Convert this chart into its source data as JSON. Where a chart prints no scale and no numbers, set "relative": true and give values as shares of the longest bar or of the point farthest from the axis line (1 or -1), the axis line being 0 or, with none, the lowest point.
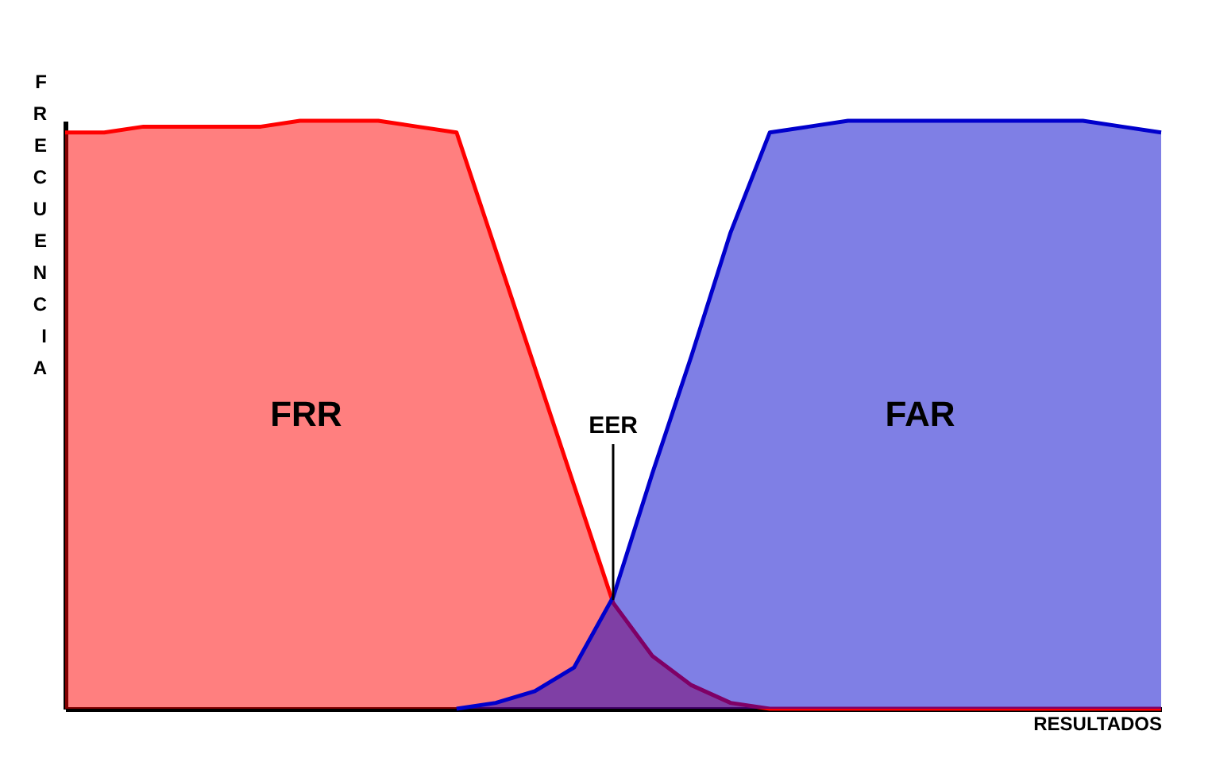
{
  "chart_data": {
    "type": "area",
    "relative": true,
    "xlabel": "RESULTADOS",
    "ylabel": "FRECUENCIA",
    "categories": [
      null,
      null,
      null,
      null,
      null,
      null,
      null,
      null,
      null,
      null,
      null,
      null,
      null,
      null,
      null,
      null,
      null,
      null,
      null,
      null,
      null,
      null,
      null,
      null,
      null,
      null,
      null,
      null,
      null
    ],
    "series": [
      {
        "name": "FRR",
        "color": "#ff0000",
        "values": [
          0.98,
          0.98,
          0.99,
          0.99,
          0.99,
          0.99,
          1.0,
          1.0,
          1.0,
          0.99,
          0.98,
          0.78,
          0.58,
          0.38,
          0.18,
          0.09,
          0.04,
          0.01,
          0,
          0,
          0,
          0,
          0,
          0,
          0,
          0,
          0,
          0,
          0
        ]
      },
      {
        "name": "FAR",
        "color": "#0000cc",
        "values": [
          null,
          null,
          null,
          null,
          null,
          null,
          null,
          null,
          null,
          null,
          0,
          0.01,
          0.03,
          0.07,
          0.19,
          0.4,
          0.6,
          0.81,
          0.98,
          0.99,
          1.0,
          1.0,
          1.0,
          1.0,
          1.0,
          1.0,
          1.0,
          0.99,
          0.98
        ]
      }
    ],
    "annotations": [
      "EER"
    ],
    "grid": false
  }
}
